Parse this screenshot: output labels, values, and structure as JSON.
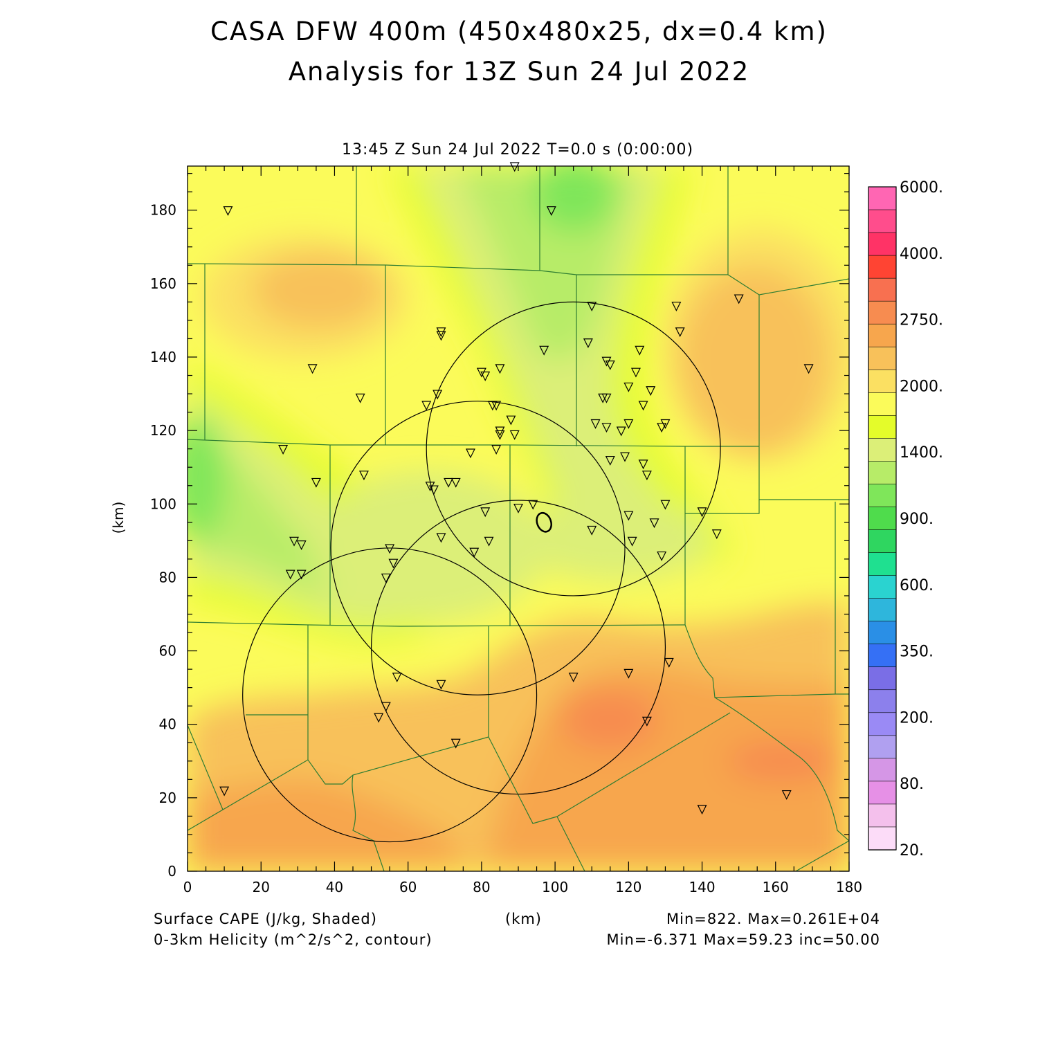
{
  "figure": {
    "title_line1": "CASA DFW 400m (450x480x25, dx=0.4 km)",
    "title_line2": "Analysis for 13Z Sun 24 Jul 2022",
    "subtitle": "13:45 Z Sun 24 Jul 2022    T=0.0 s (0:00:00)"
  },
  "axes": {
    "x_label": "(km)",
    "y_label": "(km)",
    "x_ticks": [
      0,
      20,
      40,
      60,
      80,
      100,
      120,
      140,
      160,
      180
    ],
    "y_ticks": [
      0,
      20,
      40,
      60,
      80,
      100,
      120,
      140,
      160,
      180
    ],
    "x_range": [
      0,
      180
    ],
    "y_range": [
      0,
      192
    ]
  },
  "colorbar": {
    "labels": [
      "6000.",
      "4000.",
      "2750.",
      "2000.",
      "1400.",
      "900.",
      "600.",
      "350.",
      "200.",
      "80.",
      "20."
    ],
    "colors_top_to_bottom": [
      "#ff66b3",
      "#ff4d8c",
      "#ff3366",
      "#ff4433",
      "#f87050",
      "#f78c50",
      "#f7a64d",
      "#f8c15a",
      "#fbe062",
      "#fbfb5a",
      "#e4fc2a",
      "#dcef78",
      "#b7ec68",
      "#7fe65a",
      "#4fdc4c",
      "#2fd660",
      "#1fe090",
      "#2ad3d0",
      "#2eb6dc",
      "#2a8fe6",
      "#3570f5",
      "#7a6ee6",
      "#8c80ec",
      "#9a8af5",
      "#b0a0f0",
      "#d596e6",
      "#e690e6",
      "#f4c0ec",
      "#fcdcf8"
    ]
  },
  "footer": {
    "cape_label": "Surface CAPE (J/kg, Shaded)",
    "helicity_label": "0-3km Helicity (m^2/s^2, contour)",
    "x_unit": "(km)",
    "cape_minmax": "Min=822. Max=0.261E+04",
    "helicity_minmax": "Min=-6.371 Max=59.23 inc=50.00"
  },
  "map": {
    "cape_zones": [
      {
        "level": "2000-2250",
        "color": "#f8c15a"
      },
      {
        "level": "2250-2500",
        "color": "#f7a64d"
      },
      {
        "level": "2500-2750",
        "color": "#f78c50"
      },
      {
        "level": "1750-2000",
        "color": "#fbe062"
      },
      {
        "level": "1400-1750",
        "color": "#e4fc2a"
      },
      {
        "level": "1200-1400",
        "color": "#dcef78"
      },
      {
        "level": "1000-1200",
        "color": "#b7ec68"
      },
      {
        "level": "900-1000",
        "color": "#7fe65a"
      }
    ],
    "radar_range_rings": [
      {
        "center_x": 105,
        "center_y": 115,
        "radius": 40
      },
      {
        "center_x": 79,
        "center_y": 88,
        "radius": 40
      },
      {
        "center_x": 90,
        "center_y": 61,
        "radius": 40
      },
      {
        "center_x": 55,
        "center_y": 48,
        "radius": 40
      }
    ],
    "stations": [
      [
        11,
        180
      ],
      [
        99,
        180
      ],
      [
        89,
        192
      ],
      [
        110,
        154
      ],
      [
        133,
        154
      ],
      [
        150,
        156
      ],
      [
        134,
        147
      ],
      [
        69,
        147
      ],
      [
        69,
        146
      ],
      [
        97,
        142
      ],
      [
        109,
        144
      ],
      [
        123,
        142
      ],
      [
        169,
        137
      ],
      [
        34,
        137
      ],
      [
        80,
        136
      ],
      [
        81,
        135
      ],
      [
        85,
        137
      ],
      [
        114,
        139
      ],
      [
        115,
        138
      ],
      [
        122,
        136
      ],
      [
        47,
        129
      ],
      [
        68,
        130
      ],
      [
        113,
        129
      ],
      [
        114,
        129
      ],
      [
        120,
        132
      ],
      [
        126,
        131
      ],
      [
        65,
        127
      ],
      [
        84,
        127
      ],
      [
        83,
        127
      ],
      [
        124,
        127
      ],
      [
        88,
        123
      ],
      [
        111,
        122
      ],
      [
        114,
        121
      ],
      [
        118,
        120
      ],
      [
        120,
        122
      ],
      [
        129,
        121
      ],
      [
        130,
        122
      ],
      [
        85,
        120
      ],
      [
        85,
        119
      ],
      [
        89,
        119
      ],
      [
        26,
        115
      ],
      [
        84,
        115
      ],
      [
        77,
        114
      ],
      [
        115,
        112
      ],
      [
        119,
        113
      ],
      [
        124,
        111
      ],
      [
        125,
        108
      ],
      [
        48,
        108
      ],
      [
        35,
        106
      ],
      [
        66,
        105
      ],
      [
        67,
        104
      ],
      [
        71,
        106
      ],
      [
        73,
        106
      ],
      [
        94,
        100
      ],
      [
        90,
        99
      ],
      [
        81,
        98
      ],
      [
        120,
        97
      ],
      [
        130,
        100
      ],
      [
        140,
        98
      ],
      [
        69,
        91
      ],
      [
        82,
        90
      ],
      [
        110,
        93
      ],
      [
        121,
        90
      ],
      [
        127,
        95
      ],
      [
        144,
        92
      ],
      [
        29,
        90
      ],
      [
        31,
        89
      ],
      [
        55,
        88
      ],
      [
        56,
        84
      ],
      [
        78,
        87
      ],
      [
        28,
        81
      ],
      [
        31,
        81
      ],
      [
        54,
        80
      ],
      [
        129,
        86
      ],
      [
        131,
        57
      ],
      [
        57,
        53
      ],
      [
        69,
        51
      ],
      [
        105,
        53
      ],
      [
        120,
        54
      ],
      [
        54,
        45
      ],
      [
        52,
        42
      ],
      [
        125,
        41
      ],
      [
        73,
        35
      ],
      [
        10,
        22
      ],
      [
        140,
        17
      ],
      [
        163,
        21
      ]
    ],
    "helicity_contour_center": {
      "x": 97,
      "y": 95,
      "value": 50
    }
  }
}
